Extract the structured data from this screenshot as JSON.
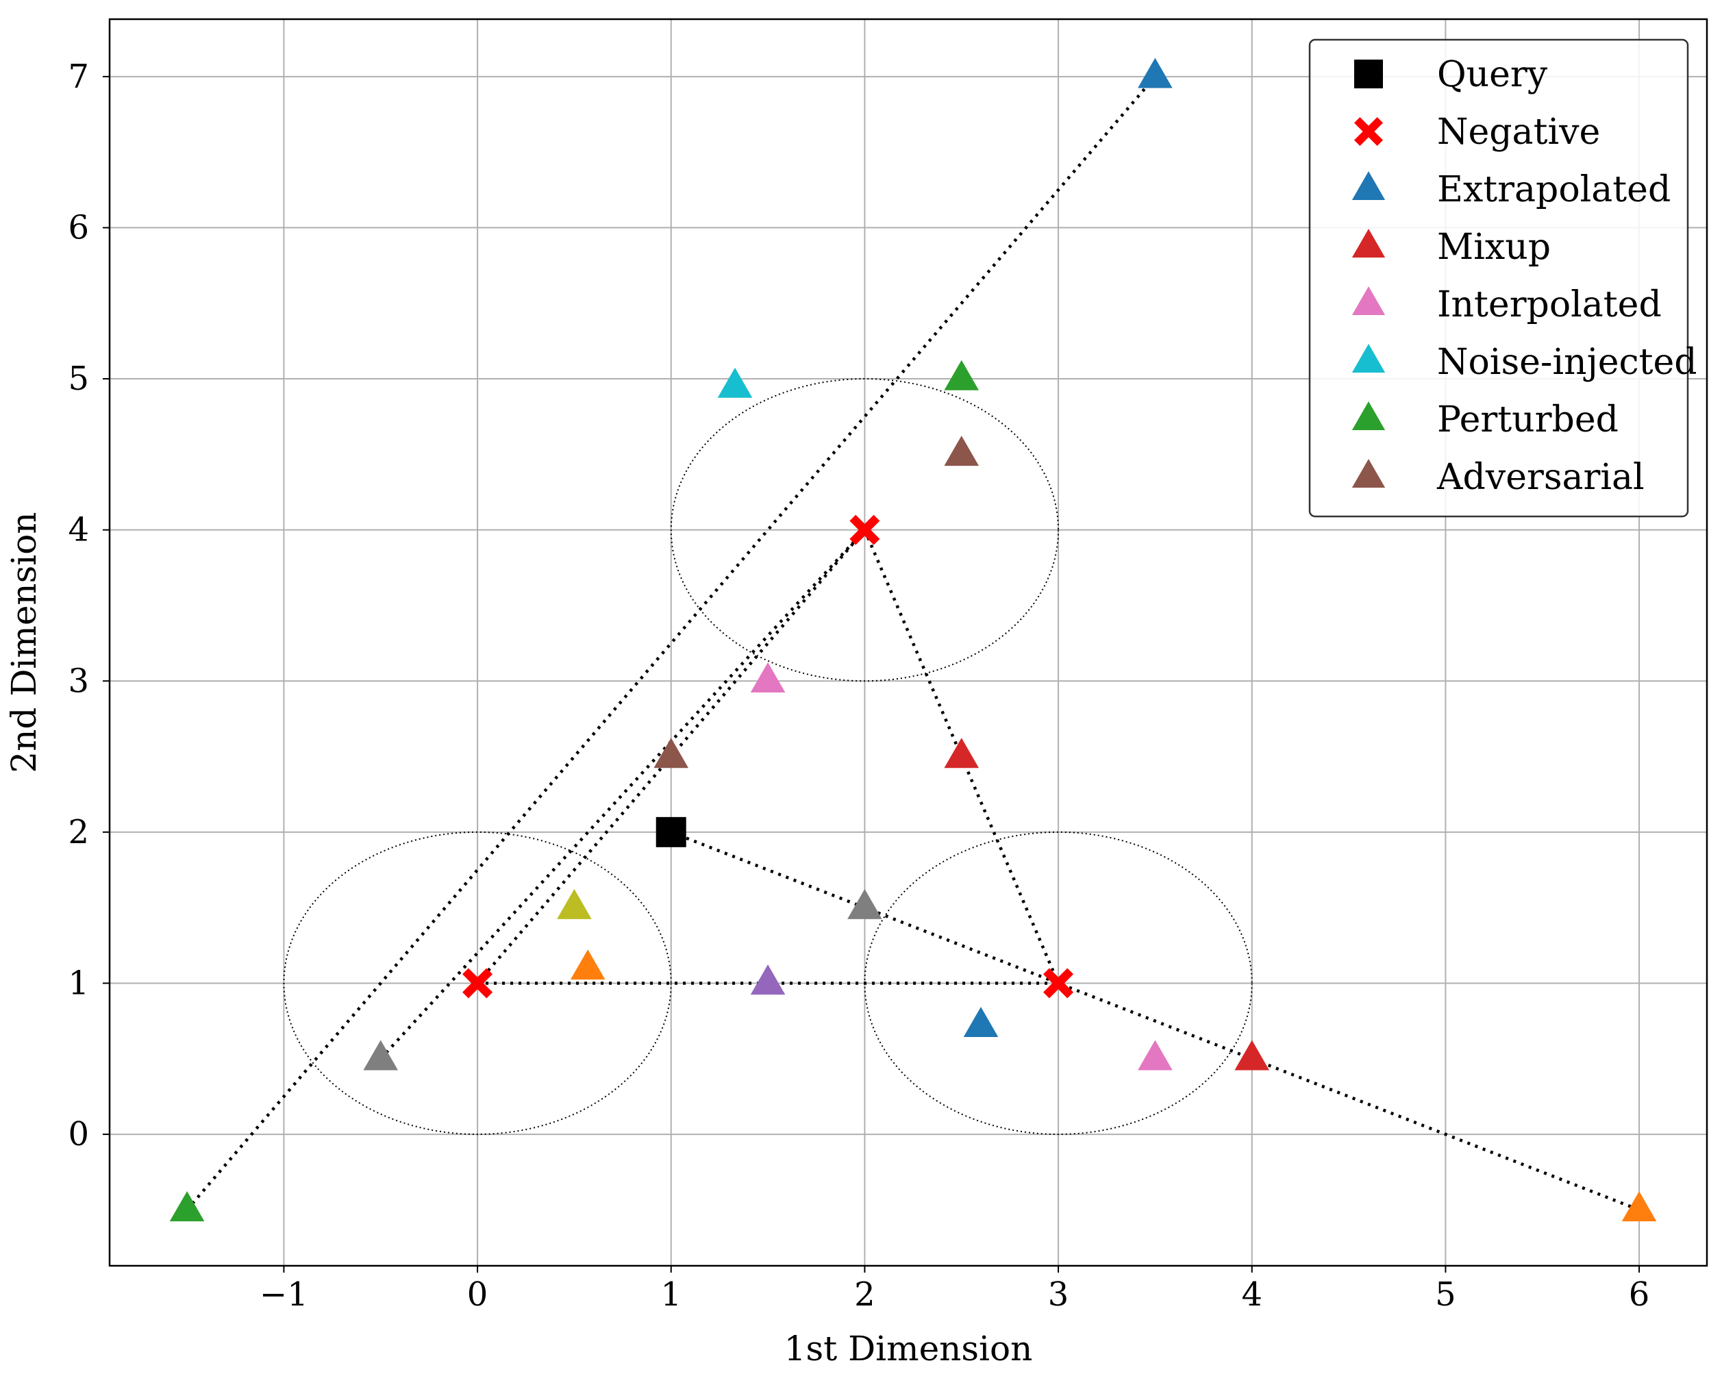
{
  "chart_data": {
    "type": "scatter",
    "title": "",
    "xlabel": "1st Dimension",
    "ylabel": "2nd Dimension",
    "xlim": [
      -1.9,
      6.35
    ],
    "ylim": [
      -0.87,
      7.38
    ],
    "grid": true,
    "legend_position": "top-right",
    "xticks": [
      {
        "value": -1,
        "label": "−1"
      },
      {
        "value": 0,
        "label": "0"
      },
      {
        "value": 1,
        "label": "1"
      },
      {
        "value": 2,
        "label": "2"
      },
      {
        "value": 3,
        "label": "3"
      },
      {
        "value": 4,
        "label": "4"
      },
      {
        "value": 5,
        "label": "5"
      },
      {
        "value": 6,
        "label": "6"
      }
    ],
    "yticks": [
      {
        "value": 0,
        "label": "0"
      },
      {
        "value": 1,
        "label": "1"
      },
      {
        "value": 2,
        "label": "2"
      },
      {
        "value": 3,
        "label": "3"
      },
      {
        "value": 4,
        "label": "4"
      },
      {
        "value": 5,
        "label": "5"
      },
      {
        "value": 6,
        "label": "6"
      },
      {
        "value": 7,
        "label": "7"
      }
    ],
    "circles": [
      {
        "center": [
          0,
          1
        ],
        "rx": 1,
        "ry": 1
      },
      {
        "center": [
          2,
          4
        ],
        "rx": 1,
        "ry": 1
      },
      {
        "center": [
          3,
          1
        ],
        "rx": 1,
        "ry": 1
      }
    ],
    "lines": [
      {
        "name": "neg0-neg1",
        "from": [
          0,
          1
        ],
        "to": [
          2,
          4
        ]
      },
      {
        "name": "neg1-neg2",
        "from": [
          2,
          4
        ],
        "to": [
          3,
          1
        ]
      },
      {
        "name": "neg0-neg2",
        "from": [
          0,
          1
        ],
        "to": [
          3,
          1
        ]
      },
      {
        "name": "ext-line-1",
        "from": [
          -1.5,
          -0.5
        ],
        "to": [
          3.5,
          7
        ]
      },
      {
        "name": "ext-line-2",
        "from": [
          -0.5,
          0.5
        ],
        "to": [
          2,
          4
        ]
      },
      {
        "name": "ext-line-3",
        "from": [
          1,
          2
        ],
        "to": [
          6,
          -0.5
        ]
      }
    ],
    "series": [
      {
        "name": "Query",
        "marker": "square",
        "color": "#000000",
        "points": [
          [
            1,
            2
          ]
        ]
      },
      {
        "name": "Negative",
        "marker": "x",
        "color": "#ff0000",
        "points": [
          [
            0,
            1
          ],
          [
            2,
            4
          ],
          [
            3,
            1
          ]
        ]
      },
      {
        "name": "Extrapolated",
        "marker": "triangle",
        "color": "#1f77b4",
        "points": [
          [
            3.5,
            7
          ],
          [
            2.6,
            0.72
          ]
        ]
      },
      {
        "name": "Mixup",
        "marker": "triangle",
        "color": "#d62728",
        "points": [
          [
            2.5,
            2.5
          ],
          [
            4,
            0.5
          ]
        ]
      },
      {
        "name": "Interpolated",
        "marker": "triangle",
        "color": "#e377c2",
        "points": [
          [
            1.5,
            3
          ],
          [
            3.5,
            0.5
          ]
        ]
      },
      {
        "name": "Noise-injected",
        "marker": "triangle",
        "color": "#17becf",
        "points": [
          [
            1.33,
            4.95
          ]
        ]
      },
      {
        "name": "Perturbed",
        "marker": "triangle",
        "color": "#2ca02c",
        "points": [
          [
            2.5,
            5
          ],
          [
            -1.5,
            -0.5
          ]
        ]
      },
      {
        "name": "Adversarial",
        "marker": "triangle",
        "color": "#8c564b",
        "points": [
          [
            2.5,
            4.5
          ],
          [
            1,
            2.5
          ]
        ]
      }
    ],
    "unlabeled_points": [
      {
        "color": "#bcbd22",
        "marker": "triangle",
        "point": [
          0.5,
          1.5
        ]
      },
      {
        "color": "#ff7f0e",
        "marker": "triangle",
        "point": [
          0.57,
          1.1
        ]
      },
      {
        "color": "#9467bd",
        "marker": "triangle",
        "point": [
          1.5,
          1
        ]
      },
      {
        "color": "#7f7f7f",
        "marker": "triangle",
        "point": [
          2,
          1.5
        ]
      },
      {
        "color": "#7f7f7f",
        "marker": "triangle",
        "point": [
          -0.5,
          0.5
        ]
      },
      {
        "color": "#ff7f0e",
        "marker": "triangle",
        "point": [
          6,
          -0.5
        ]
      }
    ]
  }
}
